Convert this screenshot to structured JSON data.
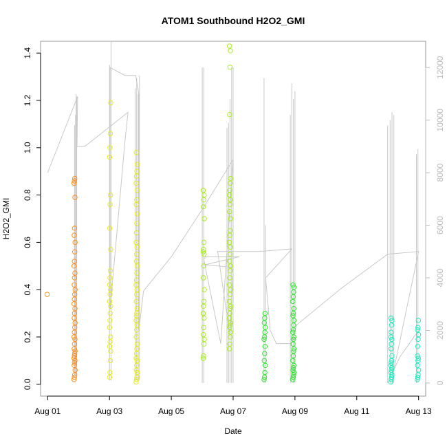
{
  "chart_data": {
    "type": "scatter",
    "title": "ATOM1 Southbound H2O2_GMI",
    "xlabel": "Date",
    "ylabel": "H2O2_GMI",
    "x_ticks": [
      {
        "label": "Aug 01",
        "day": 1
      },
      {
        "label": "Aug 03",
        "day": 3
      },
      {
        "label": "Aug 05",
        "day": 5
      },
      {
        "label": "Aug 07",
        "day": 7
      },
      {
        "label": "Aug 09",
        "day": 9
      },
      {
        "label": "Aug 11",
        "day": 11
      },
      {
        "label": "Aug 13",
        "day": 13
      }
    ],
    "xlim": [
      0.77,
      13.23
    ],
    "ylim": [
      -0.05,
      1.45
    ],
    "y_ticks": [
      "0.0",
      "0.2",
      "0.4",
      "0.6",
      "0.8",
      "1.0",
      "1.2",
      "1.4"
    ],
    "y2_label": "",
    "y2lim": [
      -500,
      13000
    ],
    "y2_ticks": [
      "0",
      "2000",
      "4000",
      "6000",
      "8000",
      "10000",
      "12000"
    ],
    "grid": false,
    "colors": {
      "secondary_line": "#c8c8c8",
      "right_axis": "#bbbbbb",
      "box": "#999999"
    },
    "series": [
      {
        "color": "#ff8c1a",
        "clusters": [
          {
            "x": 1.0,
            "y": [
              0.38
            ]
          },
          {
            "x": 1.87,
            "y": [
              0.02,
              0.03,
              0.04,
              0.06,
              0.08,
              0.09,
              0.1,
              0.11,
              0.12,
              0.13,
              0.14,
              0.15,
              0.17,
              0.19,
              0.2,
              0.22,
              0.24,
              0.26,
              0.28,
              0.3,
              0.32,
              0.34,
              0.36,
              0.38,
              0.4,
              0.42,
              0.45,
              0.47,
              0.5,
              0.52,
              0.56,
              0.6,
              0.63,
              0.66,
              0.79,
              0.85,
              0.86,
              0.87
            ]
          }
        ]
      },
      {
        "color": "#e6ee1a",
        "clusters": [
          {
            "x": 3.02,
            "y": [
              0.03,
              0.05,
              0.1,
              0.14,
              0.16,
              0.18,
              0.2,
              0.24,
              0.27,
              0.3,
              0.33,
              0.35,
              0.38,
              0.4,
              0.42,
              0.45,
              0.48,
              0.57,
              0.66,
              0.76,
              0.8,
              0.96,
              1.0,
              1.06,
              1.19
            ]
          },
          {
            "x": 3.88,
            "y": [
              0.01,
              0.02,
              0.03,
              0.05,
              0.06,
              0.08,
              0.1,
              0.11,
              0.13,
              0.15,
              0.17,
              0.2,
              0.23,
              0.25,
              0.27,
              0.29,
              0.3,
              0.32,
              0.35,
              0.38,
              0.4,
              0.42,
              0.44,
              0.47,
              0.5,
              0.52,
              0.55,
              0.58,
              0.6,
              0.64,
              0.68,
              0.72,
              0.76,
              0.78,
              0.82,
              0.85,
              0.88,
              0.9,
              0.93,
              0.98
            ]
          }
        ]
      },
      {
        "color": "#a6ee1a",
        "clusters": [
          {
            "x": 6.05,
            "y": [
              0.11,
              0.12,
              0.17,
              0.19,
              0.21,
              0.24,
              0.28,
              0.3,
              0.33,
              0.35,
              0.4,
              0.45,
              0.5,
              0.55,
              0.56,
              0.57,
              0.6,
              0.7,
              0.75,
              0.78,
              0.8,
              0.82
            ]
          },
          {
            "x": 6.9,
            "y": [
              0.15,
              0.17,
              0.2,
              0.22,
              0.24,
              0.25,
              0.26,
              0.28,
              0.3,
              0.32,
              0.33,
              0.35,
              0.38,
              0.4,
              0.42,
              0.45,
              0.48,
              0.5,
              0.52,
              0.55,
              0.58,
              0.6,
              0.63,
              0.65,
              0.7,
              0.73,
              0.76,
              0.78,
              0.8,
              0.82,
              0.85,
              0.87,
              1.14,
              1.34,
              1.41,
              1.43
            ]
          }
        ]
      },
      {
        "color": "#2ee82e",
        "clusters": [
          {
            "x": 8.02,
            "y": [
              0.02,
              0.03,
              0.05,
              0.08,
              0.1,
              0.13,
              0.16,
              0.19,
              0.2,
              0.22,
              0.24,
              0.26,
              0.28,
              0.3
            ]
          },
          {
            "x": 8.95,
            "y": [
              0.02,
              0.03,
              0.04,
              0.05,
              0.06,
              0.07,
              0.08,
              0.1,
              0.12,
              0.14,
              0.15,
              0.17,
              0.19,
              0.2,
              0.22,
              0.23,
              0.25,
              0.27,
              0.29,
              0.3,
              0.32,
              0.35,
              0.37,
              0.39,
              0.41,
              0.42
            ]
          }
        ]
      },
      {
        "color": "#1aeebe",
        "clusters": [
          {
            "x": 12.12,
            "y": [
              0.01,
              0.02,
              0.03,
              0.04,
              0.05,
              0.06,
              0.07,
              0.08,
              0.09,
              0.1,
              0.12,
              0.15,
              0.17,
              0.19,
              0.2,
              0.22,
              0.25,
              0.27,
              0.28
            ]
          },
          {
            "x": 12.98,
            "y": [
              0.02,
              0.03,
              0.04,
              0.06,
              0.08,
              0.1,
              0.11,
              0.12,
              0.16,
              0.19,
              0.21,
              0.23,
              0.24,
              0.27
            ]
          }
        ]
      }
    ],
    "secondary_line": [
      [
        1.0,
        8000
      ],
      [
        1.97,
        10900
      ],
      [
        1.95,
        9000
      ],
      [
        2.2,
        9000
      ],
      [
        3.6,
        10300
      ],
      [
        3.5,
        9200
      ],
      [
        3.02,
        2800
      ],
      [
        3.02,
        12000
      ],
      [
        3.5,
        11700
      ],
      [
        3.85,
        11700
      ],
      [
        3.95,
        11000
      ],
      [
        3.95,
        2000
      ],
      [
        4.1,
        3500
      ],
      [
        5.0,
        4800
      ],
      [
        6.0,
        6600
      ],
      [
        7.0,
        8500
      ],
      [
        6.6,
        1500
      ],
      [
        6.05,
        4700
      ],
      [
        6.1,
        4800
      ],
      [
        7.2,
        4800
      ],
      [
        6.1,
        4500
      ],
      [
        6.95,
        4400
      ],
      [
        7.0,
        4200
      ],
      [
        6.9,
        1800
      ],
      [
        6.5,
        5000
      ],
      [
        7.8,
        5000
      ],
      [
        8.9,
        5100
      ],
      [
        8.05,
        4000
      ],
      [
        8.2,
        2000
      ],
      [
        8.4,
        1500
      ],
      [
        8.9,
        1500
      ],
      [
        9.05,
        2200
      ],
      [
        10.5,
        3600
      ],
      [
        12.0,
        4900
      ],
      [
        13.0,
        5000
      ],
      [
        12.2,
        500
      ],
      [
        12.4,
        1000
      ],
      [
        13.0,
        2000
      ]
    ],
    "secondary_spikes": [
      {
        "x": 1.87,
        "lo": 300,
        "hi": 9800
      },
      {
        "x": 1.9,
        "lo": 300,
        "hi": 10200
      },
      {
        "x": 1.92,
        "lo": 300,
        "hi": 11000
      },
      {
        "x": 1.94,
        "lo": 300,
        "hi": 10900
      },
      {
        "x": 3.0,
        "lo": 100,
        "hi": 12100
      },
      {
        "x": 3.05,
        "lo": 100,
        "hi": 13000
      },
      {
        "x": 3.83,
        "lo": 100,
        "hi": 11200
      },
      {
        "x": 3.88,
        "lo": 100,
        "hi": 11600
      },
      {
        "x": 3.93,
        "lo": 100,
        "hi": 11000
      },
      {
        "x": 3.97,
        "lo": 100,
        "hi": 11700
      },
      {
        "x": 6.0,
        "lo": 0,
        "hi": 12000
      },
      {
        "x": 6.05,
        "lo": 0,
        "hi": 12000
      },
      {
        "x": 6.8,
        "lo": 0,
        "hi": 9700
      },
      {
        "x": 6.85,
        "lo": 0,
        "hi": 9900
      },
      {
        "x": 6.9,
        "lo": 0,
        "hi": 10800
      },
      {
        "x": 6.95,
        "lo": 0,
        "hi": 12000
      },
      {
        "x": 7.0,
        "lo": 0,
        "hi": 12000
      },
      {
        "x": 8.0,
        "lo": 0,
        "hi": 11600
      },
      {
        "x": 8.05,
        "lo": 0,
        "hi": 6000
      },
      {
        "x": 8.85,
        "lo": 0,
        "hi": 10200
      },
      {
        "x": 8.9,
        "lo": 0,
        "hi": 11400
      },
      {
        "x": 8.95,
        "lo": 0,
        "hi": 10800
      },
      {
        "x": 9.0,
        "lo": 0,
        "hi": 11100
      },
      {
        "x": 12.0,
        "lo": 0,
        "hi": 9800
      },
      {
        "x": 12.08,
        "lo": 0,
        "hi": 10000
      },
      {
        "x": 12.14,
        "lo": 0,
        "hi": 10300
      },
      {
        "x": 12.2,
        "lo": 0,
        "hi": 10200
      },
      {
        "x": 12.93,
        "lo": 0,
        "hi": 8700
      },
      {
        "x": 12.98,
        "lo": 0,
        "hi": 8900
      }
    ]
  }
}
